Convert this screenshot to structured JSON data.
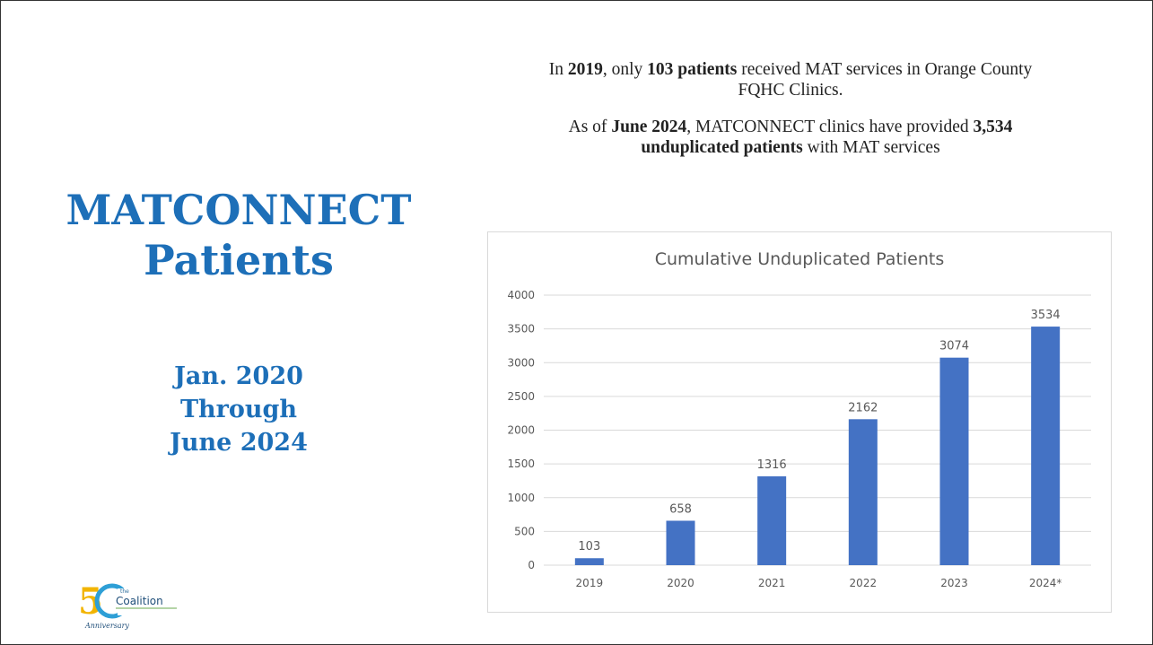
{
  "slide": {
    "title_lines": [
      "MATCONNECT",
      "Patients"
    ],
    "date_lines": [
      "Jan. 2020",
      "Through",
      "June 2024"
    ],
    "info": {
      "p1_a": "In ",
      "p1_b": "2019",
      "p1_c": ", only ",
      "p1_d": "103 patients",
      "p1_e": " received MAT services in Orange County FQHC Clinics.",
      "p2_a": "As of ",
      "p2_b": "June 2024",
      "p2_c": ", MATCONNECT clinics have provided ",
      "p2_d": "3,534 unduplicated patients",
      "p2_e": " with MAT services"
    },
    "logo": {
      "number_glyph": "5",
      "small_text": "the",
      "name": "Coalition",
      "script": "Anniversary"
    }
  },
  "colors": {
    "title": "#1d6fb8",
    "bar": "#4472c4",
    "grid": "#d9d9d9",
    "axis_text": "#595959"
  },
  "chart_data": {
    "type": "bar",
    "title": "Cumulative Unduplicated Patients",
    "categories": [
      "2019",
      "2020",
      "2021",
      "2022",
      "2023",
      "2024*"
    ],
    "values": [
      103,
      658,
      1316,
      2162,
      3074,
      3534
    ],
    "data_labels": [
      "103",
      "658",
      "1316",
      "2162",
      "3074",
      "3534"
    ],
    "y_ticks": [
      "0",
      "500",
      "1000",
      "1500",
      "2000",
      "2500",
      "3000",
      "3500",
      "4000"
    ],
    "ylim": [
      0,
      4000
    ],
    "grid": true,
    "legend": false
  }
}
